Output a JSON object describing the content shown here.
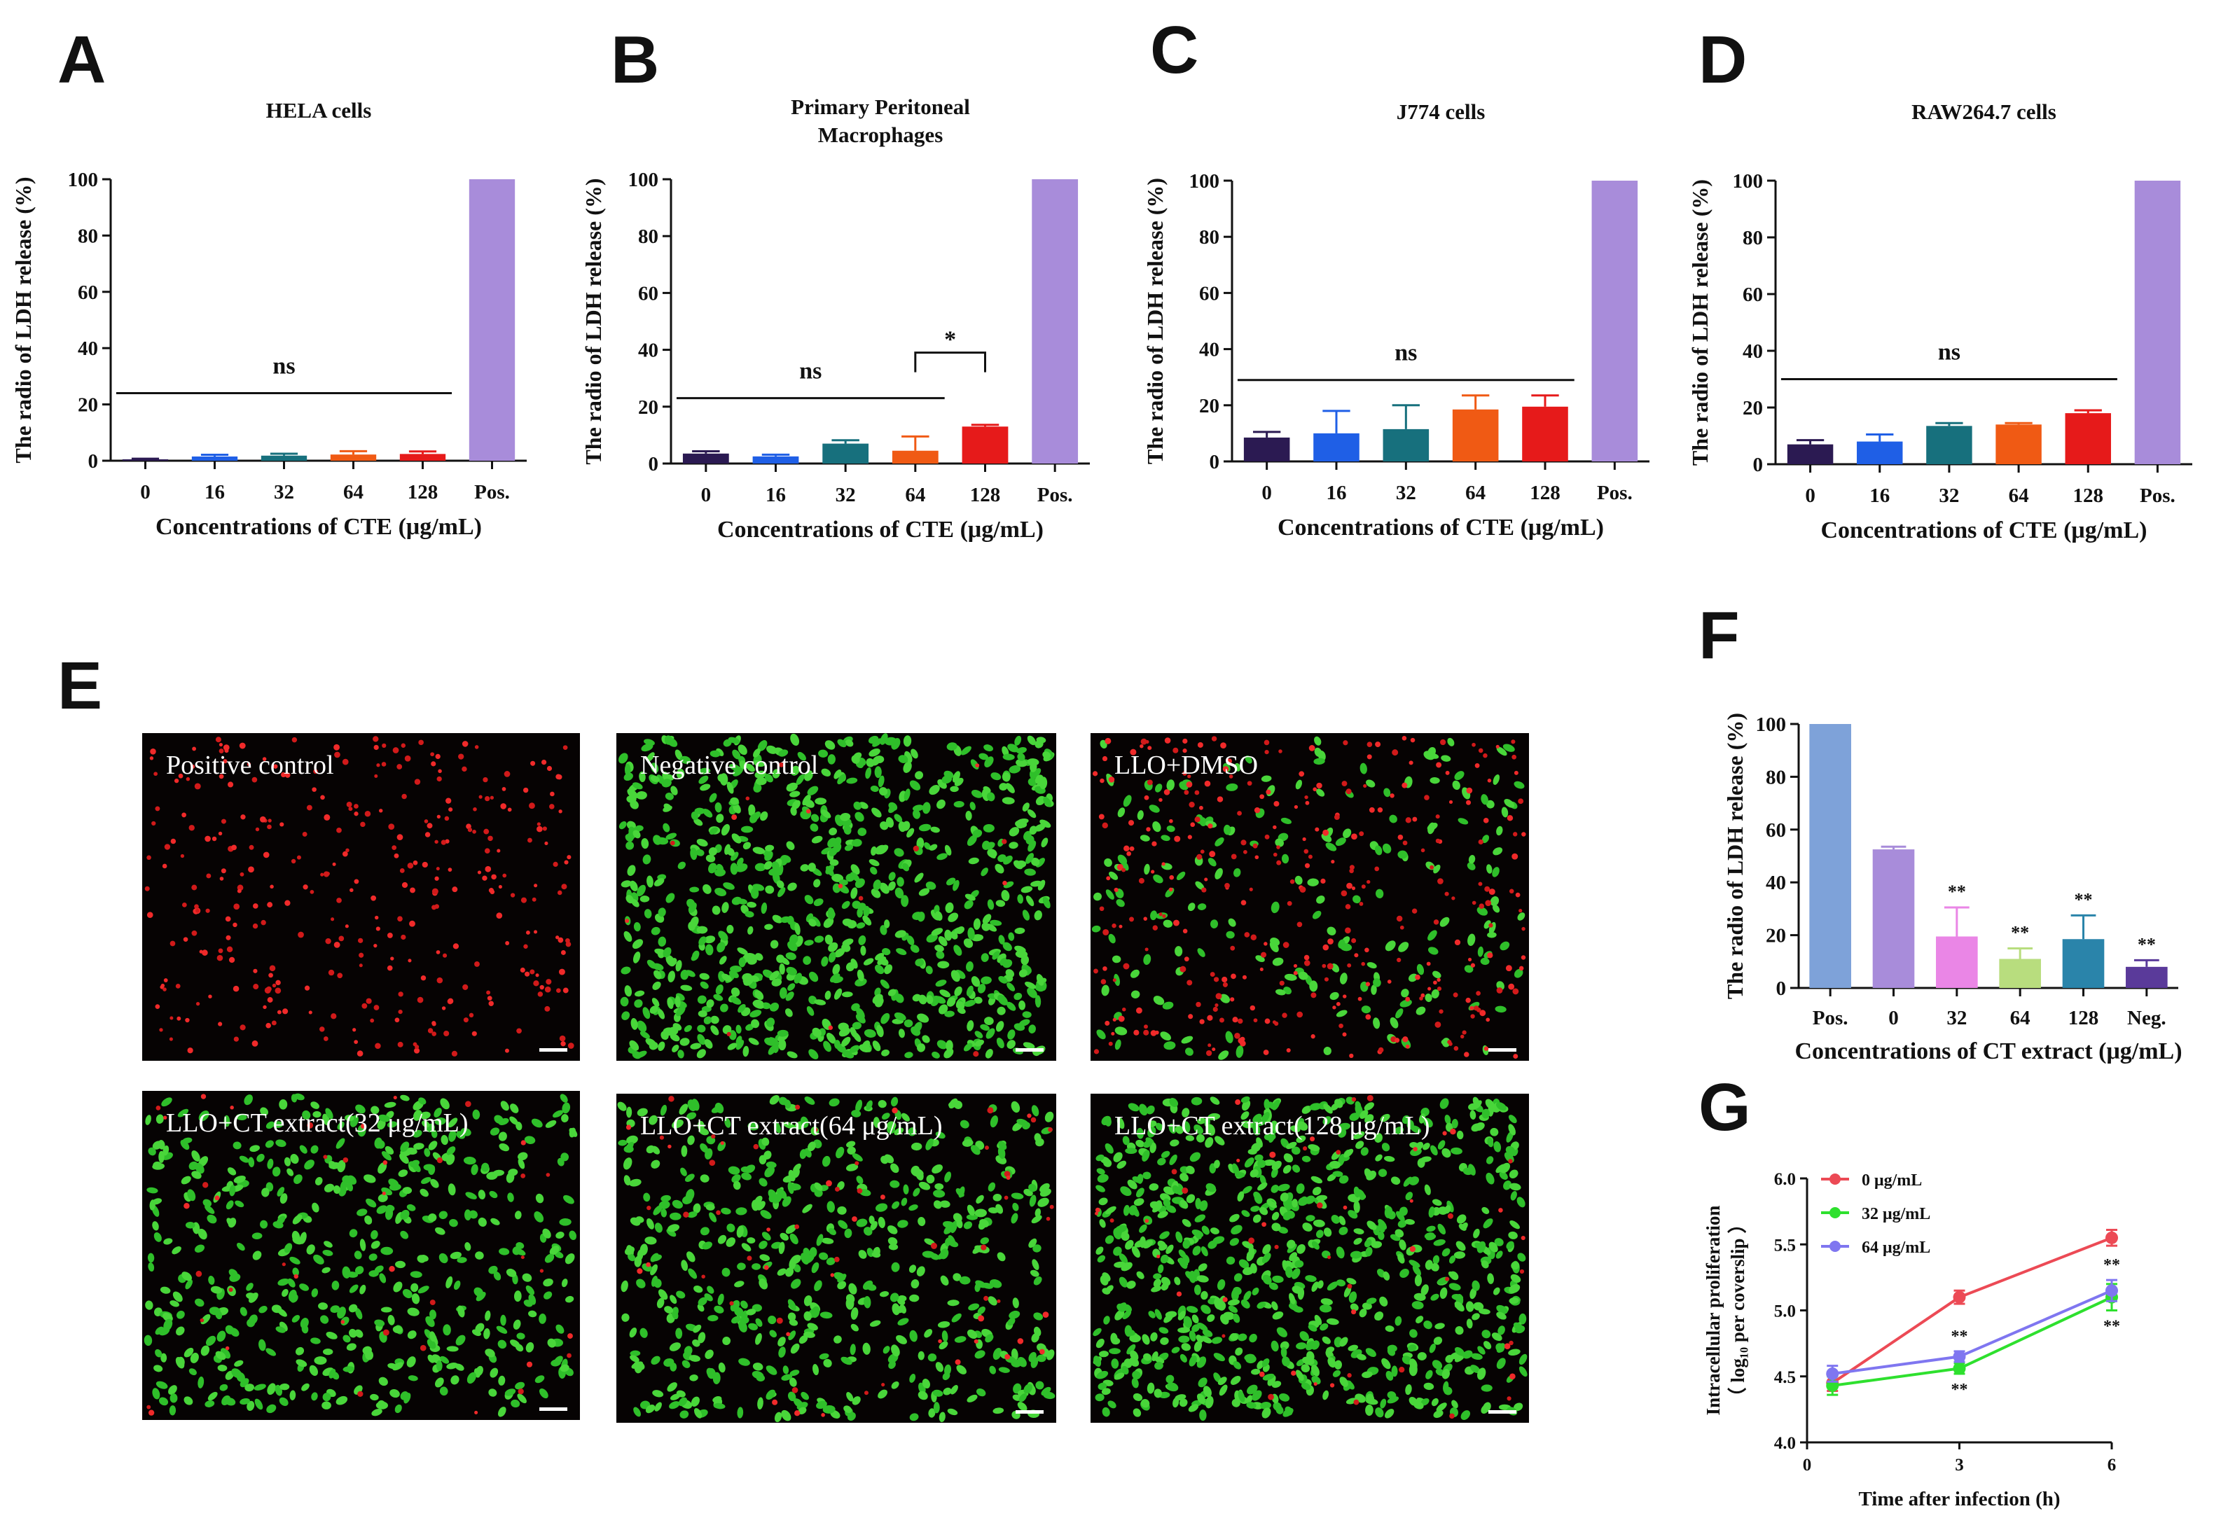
{
  "panel_labels": [
    "A",
    "B",
    "C",
    "D",
    "E",
    "F",
    "G"
  ],
  "colors": {
    "bars_abcd": [
      "#2b1a52",
      "#1f5fe6",
      "#17707d",
      "#f05a14",
      "#e61a1a",
      "#a88cda"
    ],
    "bars_f": [
      "#7ea2d9",
      "#a88cda",
      "#ea86e6",
      "#b8dd7e",
      "#2a84aa",
      "#5a3a9a"
    ],
    "lines_g": [
      "#ec4a55",
      "#2ee02e",
      "#7f76f0"
    ]
  },
  "chart_data": [
    {
      "type": "bar",
      "panel": "A",
      "title": "HELA cells",
      "xlabel": "Concentrations of CTE (μg/mL)",
      "ylabel": "The radio of LDH release (%)",
      "categories": [
        "0",
        "16",
        "32",
        "64",
        "128",
        "Pos."
      ],
      "values": [
        0.5,
        1.5,
        1.8,
        2.2,
        2.4,
        100
      ],
      "errors": [
        0.2,
        0.6,
        0.7,
        1.2,
        0.9,
        0
      ],
      "ylim": [
        0,
        100
      ],
      "yticks": [
        "0",
        "20",
        "40",
        "60",
        "80",
        "100"
      ],
      "annotations": [
        {
          "text": "ns",
          "from": 0,
          "to": 4,
          "y": 24
        }
      ]
    },
    {
      "type": "bar",
      "panel": "B",
      "title": "Primary Peritoneal Macrophages",
      "xlabel": "Concentrations of CTE (μg/mL)",
      "ylabel": "The radio of LDH release (%)",
      "categories": [
        "0",
        "16",
        "32",
        "64",
        "128",
        "Pos."
      ],
      "values": [
        3.5,
        2.5,
        7,
        4.5,
        13,
        100
      ],
      "errors": [
        0.8,
        0.6,
        1.2,
        5,
        0.6,
        0
      ],
      "ylim": [
        0,
        100
      ],
      "yticks": [
        "0",
        "20",
        "40",
        "60",
        "80",
        "100"
      ],
      "annotations": [
        {
          "text": "ns",
          "from": 0,
          "to": 3,
          "y": 23
        },
        {
          "text": "*",
          "from": 3,
          "to": 4,
          "y": 39,
          "bracket": true
        }
      ]
    },
    {
      "type": "bar",
      "panel": "C",
      "title": "J774 cells",
      "xlabel": "Concentrations of CTE (μg/mL)",
      "ylabel": "The radio of LDH release (%)",
      "categories": [
        "0",
        "16",
        "32",
        "64",
        "128",
        "Pos."
      ],
      "values": [
        8.5,
        10,
        11.5,
        18.5,
        19.5,
        100
      ],
      "errors": [
        2,
        8,
        8.5,
        5,
        4,
        0
      ],
      "ylim": [
        0,
        100
      ],
      "yticks": [
        "0",
        "20",
        "40",
        "60",
        "80",
        "100"
      ],
      "annotations": [
        {
          "text": "ns",
          "from": 0,
          "to": 4,
          "y": 29
        }
      ]
    },
    {
      "type": "bar",
      "panel": "D",
      "title": "RAW264.7 cells",
      "xlabel": "Concentrations of CTE (μg/mL)",
      "ylabel": "The radio of LDH release (%)",
      "categories": [
        "0",
        "16",
        "32",
        "64",
        "128",
        "Pos."
      ],
      "values": [
        7,
        8,
        13.5,
        14,
        18,
        100
      ],
      "errors": [
        1.5,
        2.5,
        1,
        0.5,
        1,
        0
      ],
      "ylim": [
        0,
        100
      ],
      "yticks": [
        "0",
        "20",
        "40",
        "60",
        "80",
        "100"
      ],
      "annotations": [
        {
          "text": "ns",
          "from": 0,
          "to": 4,
          "y": 30
        }
      ]
    },
    {
      "type": "bar",
      "panel": "F",
      "title": "",
      "xlabel": "Concentrations of CT extract (μg/mL)",
      "ylabel": "The radio of LDH release (%)",
      "categories": [
        "Pos.",
        "0",
        "32",
        "64",
        "128",
        "Neg."
      ],
      "values": [
        100,
        52.5,
        19.5,
        11,
        18.5,
        8
      ],
      "errors": [
        0,
        1,
        11,
        4,
        9,
        2.5
      ],
      "labels": [
        "",
        "",
        "**",
        "**",
        "**",
        "**"
      ],
      "ylim": [
        0,
        100
      ],
      "yticks": [
        "0",
        "20",
        "40",
        "60",
        "80",
        "100"
      ]
    },
    {
      "type": "line",
      "panel": "G",
      "title": "",
      "xlabel": "Time after infection (h)",
      "ylabel": "Intracellular proliferation",
      "ylabel2": "（ log₁₀ per coverslip ）",
      "x": [
        0.5,
        3,
        6
      ],
      "xlim": [
        0,
        6
      ],
      "ylim": [
        4.0,
        6.0
      ],
      "xticks": [
        "0",
        "3",
        "6"
      ],
      "yticks": [
        "4.0",
        "4.5",
        "5.0",
        "5.5",
        "6.0"
      ],
      "series": [
        {
          "name": "0 μg/mL",
          "values": [
            4.45,
            5.1,
            5.55
          ],
          "errors": [
            0.06,
            0.05,
            0.06
          ],
          "labels": [
            "",
            "",
            ""
          ]
        },
        {
          "name": "32 μg/mL",
          "values": [
            4.43,
            4.56,
            5.1
          ],
          "errors": [
            0.07,
            0.04,
            0.1
          ],
          "labels": [
            "",
            "**",
            "**"
          ]
        },
        {
          "name": "64 μg/mL",
          "values": [
            4.52,
            4.65,
            5.15
          ],
          "errors": [
            0.06,
            0.04,
            0.08
          ],
          "labels": [
            "",
            "**",
            "**"
          ]
        }
      ]
    }
  ],
  "micrographs": [
    {
      "label": "Positive control",
      "green": 0,
      "red": 340
    },
    {
      "label": "Negative control",
      "green": 820,
      "red": 15
    },
    {
      "label": "LLO+DMSO",
      "green": 210,
      "red": 330
    },
    {
      "label": "LLO+CT extract(32 μg/mL)",
      "green": 520,
      "red": 40
    },
    {
      "label": "LLO+CT extract(64 μg/mL)",
      "green": 560,
      "red": 60
    },
    {
      "label": "LLO+CT extract(128 μg/mL)",
      "green": 820,
      "red": 50
    }
  ]
}
